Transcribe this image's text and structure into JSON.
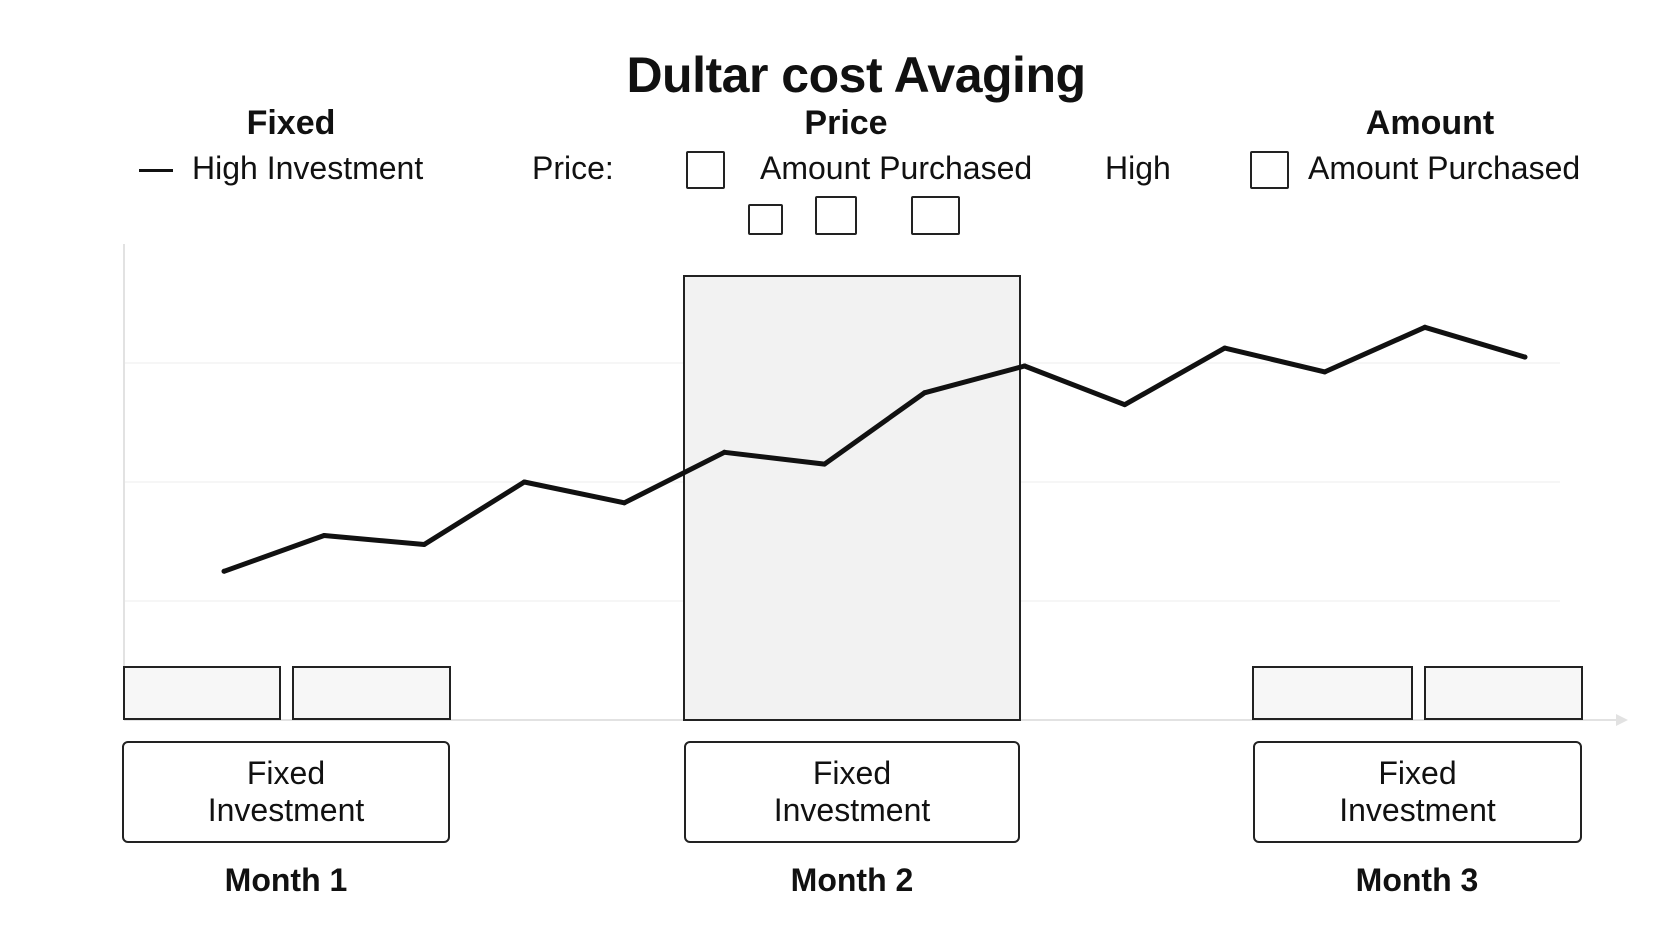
{
  "title": "Dultar cost Avaging",
  "columns": {
    "left": {
      "heading": "Fixed",
      "legend": "High Investment"
    },
    "middle": {
      "heading": "Price",
      "prefix": "Price:",
      "legend": "Amount Purchased"
    },
    "right": {
      "heading": "Amount",
      "prefix": "High",
      "legend": "Amount Purchased"
    }
  },
  "months": [
    {
      "box_line1": "Fixed",
      "box_line2": "Investment",
      "label": "Month 1"
    },
    {
      "box_line1": "Fixed",
      "box_line2": "Investment",
      "label": "Month 2"
    },
    {
      "box_line1": "Fixed",
      "box_line2": "Investment",
      "label": "Month 3"
    }
  ],
  "chart_data": {
    "type": "line",
    "title": "",
    "xlabel": "",
    "ylabel": "",
    "x": [
      1,
      2,
      3,
      4,
      5,
      6,
      7,
      8,
      9,
      10,
      11,
      12,
      13,
      14
    ],
    "series": [
      {
        "values": [
          2.5,
          3.1,
          2.95,
          4.0,
          3.65,
          4.5,
          4.3,
          5.5,
          5.95,
          5.3,
          6.25,
          5.85,
          6.6,
          6.1
        ]
      }
    ],
    "ylim": [
      0,
      8
    ],
    "grid": true,
    "colors": {
      "line": "#111111",
      "highlight": "#f1f1f1",
      "grid": "#eeeeee",
      "axis": "#dddddd"
    }
  }
}
